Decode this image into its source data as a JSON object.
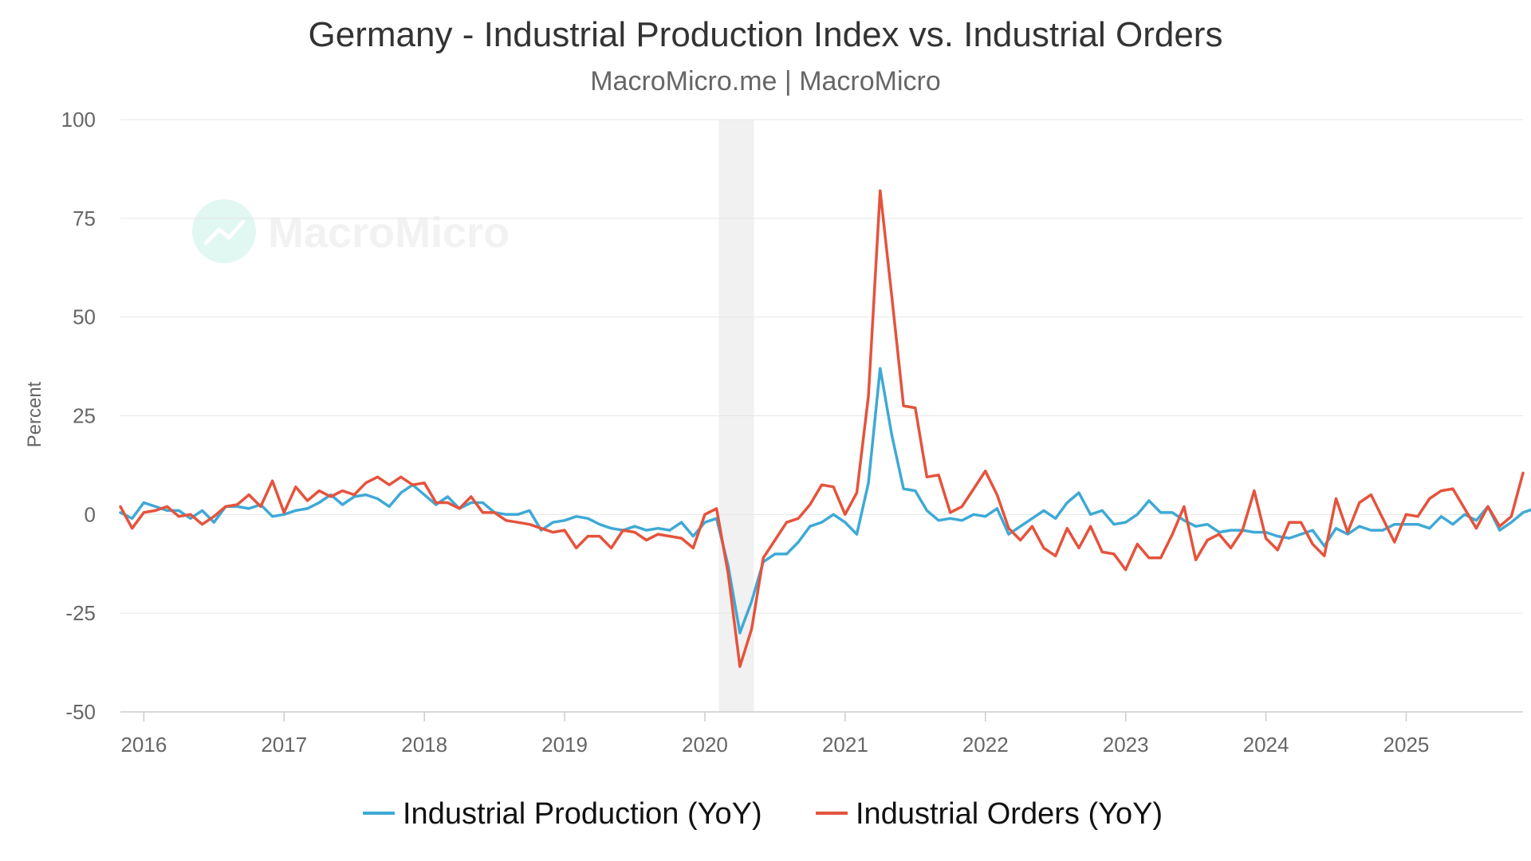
{
  "chart_data": {
    "type": "line",
    "title": "Germany - Industrial Production Index vs. Industrial Orders",
    "subtitle": "MacroMicro.me | MacroMicro",
    "watermark": "MacroMicro",
    "xlabel": "",
    "ylabel": "Percent",
    "ylim": [
      -50,
      100
    ],
    "yticks": [
      100,
      75,
      50,
      25,
      0,
      -25,
      -50
    ],
    "xlim": [
      2015.833,
      2025.833
    ],
    "xticks": [
      2016,
      2017,
      2018,
      2019,
      2020,
      2021,
      2022,
      2023,
      2024,
      2025
    ],
    "x_start": 2015.833,
    "x_step_months": 1,
    "recession_band": [
      2020.1,
      2020.35
    ],
    "grid": true,
    "legend_position": "bottom",
    "series": [
      {
        "name": "Industrial Production (YoY)",
        "color": "#3FA9D6",
        "values": [
          0.5,
          -1,
          3,
          2,
          1,
          1,
          -1,
          1,
          -2,
          2,
          2,
          1.5,
          2.5,
          -0.5,
          0,
          1,
          1.5,
          3,
          5,
          2.5,
          4.5,
          5,
          4,
          2,
          5.5,
          7.5,
          5,
          2.5,
          4.5,
          1.5,
          3,
          3,
          0.5,
          0,
          0,
          1,
          -4,
          -2,
          -1.5,
          -0.5,
          -1,
          -2.5,
          -3.5,
          -4,
          -3,
          -4,
          -3.5,
          -4,
          -2,
          -5.5,
          -2,
          -1,
          -13,
          -30,
          -22,
          -12,
          -10,
          -10,
          -7,
          -3,
          -2,
          0,
          -2,
          -5,
          8,
          37,
          20,
          6.5,
          6,
          1,
          -1.5,
          -1,
          -1.5,
          0,
          -0.5,
          1.5,
          -5,
          -3,
          -1,
          1,
          -1,
          3,
          5.5,
          0,
          1,
          -2.5,
          -2,
          0,
          3.5,
          0.5,
          0.5,
          -1.5,
          -3,
          -2.5,
          -4.5,
          -4,
          -4,
          -4.5,
          -4.5,
          -5.5,
          -6,
          -5,
          -4,
          -8,
          -3.5,
          -5,
          -3,
          -4,
          -4,
          -2.5,
          -2.5,
          -2.5,
          -3.5,
          -0.5,
          -2.5,
          0,
          -1.5,
          2,
          -4,
          -2,
          0.5,
          1.5
        ]
      },
      {
        "name": "Industrial Orders (YoY)",
        "color": "#E5533D",
        "values": [
          2,
          -3.5,
          0.5,
          1,
          2,
          -0.5,
          0,
          -2.5,
          -0.5,
          2,
          2.5,
          5,
          2,
          8.5,
          0.5,
          7,
          3.5,
          6,
          4.5,
          6,
          5,
          8,
          9.5,
          7.5,
          9.5,
          7.5,
          8,
          3,
          3,
          1.5,
          4.5,
          0.5,
          0.5,
          -1.5,
          -2,
          -2.5,
          -3.5,
          -4.5,
          -4,
          -8.5,
          -5.5,
          -5.5,
          -8.5,
          -4,
          -4.5,
          -6.5,
          -5,
          -5.5,
          -6,
          -8.5,
          0,
          1.5,
          -15,
          -38.5,
          -29,
          -11,
          -6.5,
          -2,
          -1,
          2.5,
          7.5,
          7,
          0,
          5.5,
          30,
          82,
          55,
          27.5,
          27,
          9.5,
          10,
          0.5,
          2,
          6.5,
          11,
          5,
          -3.5,
          -6.5,
          -3,
          -8.5,
          -10.5,
          -3.5,
          -8.5,
          -3,
          -9.5,
          -10,
          -14,
          -7.5,
          -11,
          -11,
          -5,
          2,
          -11.5,
          -6.5,
          -5,
          -8.5,
          -4,
          6,
          -6,
          -9,
          -2,
          -2,
          -7.5,
          -10.5,
          4,
          -4.5,
          3,
          5,
          -1,
          -7,
          0,
          -0.5,
          4,
          6,
          6.5,
          1.5,
          -3.5,
          2,
          -3,
          -0.5,
          10.5
        ]
      }
    ]
  }
}
